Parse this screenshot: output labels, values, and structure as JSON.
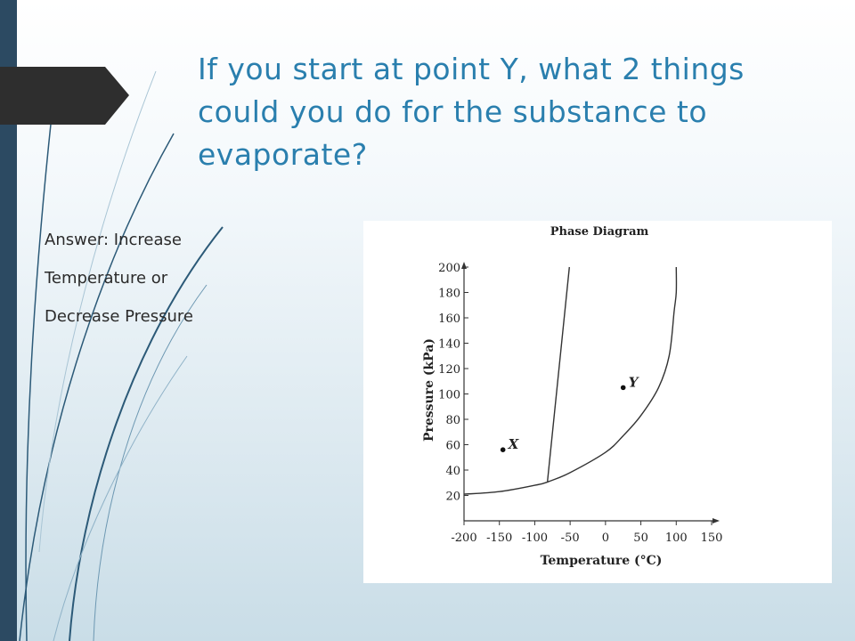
{
  "slide": {
    "title": "If you start at point Y, what 2 things could you do for the substance to evaporate?",
    "answer_lines": [
      "Answer: Increase",
      "Temperature or",
      "Decrease Pressure"
    ],
    "colors": {
      "accent": "#2a7fae",
      "left_bar": "#2c4a62",
      "arrow_tab": "#2e2e2e"
    }
  },
  "chart_data": {
    "type": "line",
    "title": "Phase Diagram",
    "xlabel": "Temperature (°C)",
    "ylabel": "Pressure (kPa)",
    "xlim": [
      -200,
      150
    ],
    "ylim": [
      0,
      200
    ],
    "x_ticks": [
      "-200",
      "-150",
      "-100",
      "-50",
      "0",
      "50",
      "100",
      "150"
    ],
    "y_ticks": [
      "20",
      "40",
      "60",
      "80",
      "100",
      "120",
      "140",
      "160",
      "180",
      "200"
    ],
    "series": [
      {
        "x": [
          -200,
          -150,
          -100,
          -80,
          -50,
          0,
          25,
          50,
          75,
          90,
          97,
          100,
          100
        ],
        "y": [
          21,
          23,
          28,
          31,
          38,
          54,
          67,
          83,
          105,
          130,
          165,
          180,
          200
        ]
      },
      {
        "x": [
          -82,
          -51
        ],
        "y": [
          31,
          200
        ]
      }
    ],
    "points": [
      {
        "label": "X",
        "x": -145,
        "y": 56
      },
      {
        "label": "Y",
        "x": 25,
        "y": 105
      }
    ]
  }
}
